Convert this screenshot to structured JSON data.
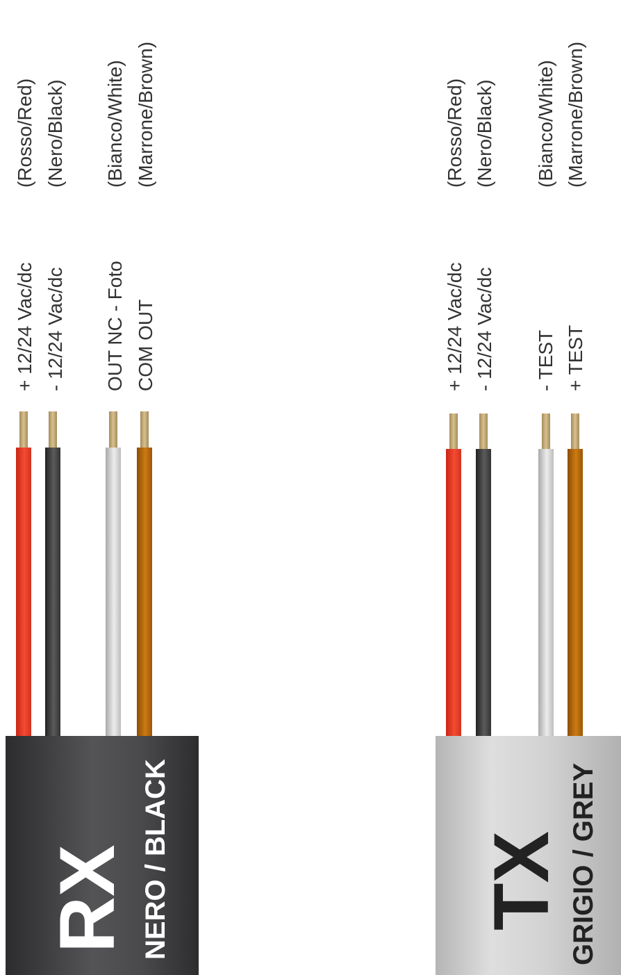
{
  "rx": {
    "code": "RX",
    "color_label": "NERO / BLACK",
    "wires": [
      {
        "function": "+ 12/24 Vac/dc",
        "color": "(Rosso/Red)"
      },
      {
        "function": "- 12/24 Vac/dc",
        "color": "(Nero/Black)"
      },
      {
        "function": "OUT NC - Foto",
        "color": "(Bianco/White)"
      },
      {
        "function": "COM OUT",
        "color": "(Marrone/Brown)"
      }
    ]
  },
  "tx": {
    "code": "TX",
    "color_label": "GRIGIO / GREY",
    "wires": [
      {
        "function": "+ 12/24 Vac/dc",
        "color": "(Rosso/Red)"
      },
      {
        "function": "- 12/24 Vac/dc",
        "color": "(Nero/Black)"
      },
      {
        "function": "- TEST",
        "color": "(Bianco/White)"
      },
      {
        "function": "+ TEST",
        "color": "(Marrone/Brown)"
      }
    ]
  },
  "colors": {
    "red": "#f44b32",
    "black": "#3a3a3a",
    "white": "#e0e0e0",
    "brown": "#c0700f",
    "rx_jacket": "#3f3f42",
    "tx_jacket": "#cfcfcf"
  }
}
